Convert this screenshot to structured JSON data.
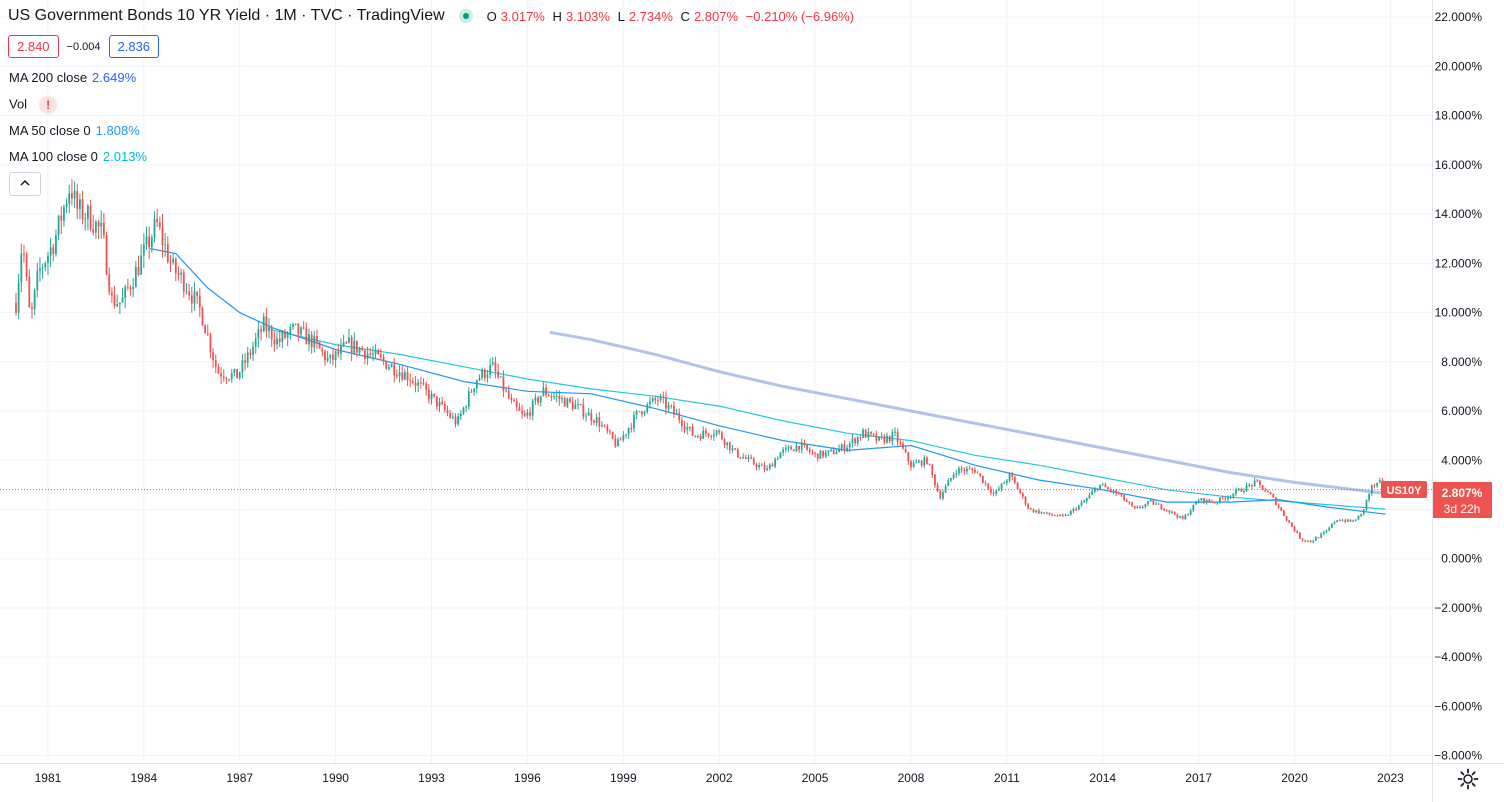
{
  "header": {
    "title": "US Government Bonds 10 YR Yield · 1M · TVC · TradingView",
    "ohlc": {
      "open_label": "O",
      "open": "3.017%",
      "high_label": "H",
      "high": "3.103%",
      "low_label": "L",
      "low": "2.734%",
      "close_label": "C",
      "close": "2.807%",
      "change": "−0.210% (−6.96%)"
    },
    "sell_price": "2.840",
    "spread": "−0.004",
    "buy_price": "2.836"
  },
  "indicators": [
    {
      "label": "MA 200 close",
      "value": "2.649%",
      "color": "#2962ff"
    },
    {
      "label": "Vol",
      "warning": "!"
    },
    {
      "label": "MA 50 close 0",
      "value": "1.808%",
      "color": "#2196f3"
    },
    {
      "label": "MA 100 close 0",
      "value": "2.013%",
      "color": "#00bcd4"
    }
  ],
  "symbol_tag": "US10Y",
  "last_price_tag": {
    "price": "2.807%",
    "countdown": "3d 22h"
  },
  "colors": {
    "up": "#26a69a",
    "down": "#ef5350",
    "ma50": "#2196f3",
    "ma100": "#26c6da",
    "ma200": "#a5b8e6",
    "price_tag": "#ef5350",
    "grid": "#f0f3fa"
  },
  "icons": {
    "collapse": "chevron-up-icon",
    "settings": "gear-icon",
    "status": "market-status-dot-icon"
  },
  "chart_data": {
    "type": "candlestick",
    "symbol": "US10Y",
    "interval": "1M",
    "ylim": [
      -8.3,
      22.7
    ],
    "xlim": [
      1979.5,
      2024.3
    ],
    "y_ticks": [
      "22.000%",
      "20.000%",
      "18.000%",
      "16.000%",
      "14.000%",
      "12.000%",
      "10.000%",
      "8.000%",
      "6.000%",
      "4.000%",
      "2.000%",
      "0.000%",
      "−2.000%",
      "−4.000%",
      "−6.000%",
      "−8.000%"
    ],
    "x_ticks": [
      "1981",
      "1984",
      "1987",
      "1990",
      "1993",
      "1996",
      "1999",
      "2002",
      "2005",
      "2008",
      "2011",
      "2014",
      "2017",
      "2020",
      "2023"
    ],
    "last_close": 2.807,
    "price_path": [
      [
        1980.0,
        10.4
      ],
      [
        1980.2,
        13.0
      ],
      [
        1980.45,
        9.6
      ],
      [
        1980.7,
        11.6
      ],
      [
        1981.2,
        12.9
      ],
      [
        1981.7,
        15.2
      ],
      [
        1981.9,
        14.2
      ],
      [
        1982.3,
        13.9
      ],
      [
        1982.7,
        13.2
      ],
      [
        1983.0,
        10.5
      ],
      [
        1983.3,
        10.4
      ],
      [
        1983.8,
        11.8
      ],
      [
        1984.4,
        13.6
      ],
      [
        1984.9,
        11.8
      ],
      [
        1985.3,
        11.2
      ],
      [
        1985.8,
        10.0
      ],
      [
        1986.3,
        7.6
      ],
      [
        1986.9,
        7.4
      ],
      [
        1987.3,
        8.3
      ],
      [
        1987.75,
        9.5
      ],
      [
        1988.2,
        8.8
      ],
      [
        1988.7,
        9.3
      ],
      [
        1989.3,
        8.8
      ],
      [
        1989.8,
        8.0
      ],
      [
        1990.4,
        8.7
      ],
      [
        1990.8,
        8.5
      ],
      [
        1991.5,
        8.0
      ],
      [
        1992.3,
        7.4
      ],
      [
        1992.8,
        6.8
      ],
      [
        1993.5,
        5.9
      ],
      [
        1993.8,
        5.5
      ],
      [
        1994.4,
        7.3
      ],
      [
        1994.9,
        7.8
      ],
      [
        1995.5,
        6.3
      ],
      [
        1995.9,
        5.7
      ],
      [
        1996.5,
        6.8
      ],
      [
        1997.0,
        6.5
      ],
      [
        1997.5,
        6.2
      ],
      [
        1998.2,
        5.6
      ],
      [
        1998.8,
        4.6
      ],
      [
        1999.5,
        6.0
      ],
      [
        2000.1,
        6.5
      ],
      [
        2000.7,
        5.8
      ],
      [
        2001.2,
        5.0
      ],
      [
        2001.9,
        5.2
      ],
      [
        2002.5,
        4.3
      ],
      [
        2002.9,
        4.0
      ],
      [
        2003.5,
        3.6
      ],
      [
        2003.9,
        4.3
      ],
      [
        2004.5,
        4.6
      ],
      [
        2005.0,
        4.2
      ],
      [
        2005.5,
        4.3
      ],
      [
        2006.0,
        4.6
      ],
      [
        2006.5,
        5.1
      ],
      [
        2007.0,
        4.8
      ],
      [
        2007.5,
        5.0
      ],
      [
        2008.0,
        3.8
      ],
      [
        2008.5,
        4.0
      ],
      [
        2008.9,
        2.5
      ],
      [
        2009.4,
        3.6
      ],
      [
        2010.0,
        3.6
      ],
      [
        2010.6,
        2.6
      ],
      [
        2011.1,
        3.4
      ],
      [
        2011.7,
        2.0
      ],
      [
        2012.3,
        1.8
      ],
      [
        2012.8,
        1.7
      ],
      [
        2013.4,
        2.3
      ],
      [
        2013.9,
        3.0
      ],
      [
        2014.5,
        2.6
      ],
      [
        2015.0,
        2.0
      ],
      [
        2015.5,
        2.3
      ],
      [
        2016.0,
        2.0
      ],
      [
        2016.5,
        1.6
      ],
      [
        2017.0,
        2.4
      ],
      [
        2017.5,
        2.3
      ],
      [
        2018.0,
        2.6
      ],
      [
        2018.8,
        3.1
      ],
      [
        2019.3,
        2.5
      ],
      [
        2019.7,
        1.7
      ],
      [
        2020.2,
        0.8
      ],
      [
        2020.5,
        0.7
      ],
      [
        2021.0,
        1.1
      ],
      [
        2021.3,
        1.6
      ],
      [
        2021.8,
        1.5
      ],
      [
        2022.1,
        1.8
      ],
      [
        2022.4,
        2.9
      ],
      [
        2022.7,
        3.1
      ],
      [
        2022.85,
        2.8
      ]
    ],
    "ma_series": [
      {
        "name": "MA 50 close 0",
        "key": "ma50",
        "points": [
          [
            1984.2,
            12.6
          ],
          [
            1985.0,
            12.4
          ],
          [
            1986.0,
            11.0
          ],
          [
            1987.0,
            10.0
          ],
          [
            1988.0,
            9.4
          ],
          [
            1990.0,
            8.5
          ],
          [
            1992.0,
            7.9
          ],
          [
            1994.0,
            7.2
          ],
          [
            1996.0,
            6.8
          ],
          [
            1998.0,
            6.7
          ],
          [
            2000.0,
            6.1
          ],
          [
            2002.0,
            5.4
          ],
          [
            2004.0,
            4.8
          ],
          [
            2006.0,
            4.4
          ],
          [
            2008.0,
            4.6
          ],
          [
            2010.0,
            3.8
          ],
          [
            2012.0,
            3.2
          ],
          [
            2014.0,
            2.8
          ],
          [
            2016.0,
            2.3
          ],
          [
            2018.0,
            2.3
          ],
          [
            2019.5,
            2.4
          ],
          [
            2021.0,
            2.1
          ],
          [
            2022.85,
            1.81
          ]
        ]
      },
      {
        "name": "MA 100 close 0",
        "key": "ma100",
        "points": [
          [
            1988.0,
            9.3
          ],
          [
            1990.0,
            8.7
          ],
          [
            1992.0,
            8.3
          ],
          [
            1994.0,
            7.8
          ],
          [
            1996.0,
            7.3
          ],
          [
            1998.0,
            6.9
          ],
          [
            2000.0,
            6.6
          ],
          [
            2002.0,
            6.2
          ],
          [
            2004.0,
            5.6
          ],
          [
            2006.0,
            5.1
          ],
          [
            2008.0,
            4.8
          ],
          [
            2010.0,
            4.2
          ],
          [
            2012.0,
            3.8
          ],
          [
            2014.0,
            3.3
          ],
          [
            2016.0,
            2.8
          ],
          [
            2018.0,
            2.5
          ],
          [
            2020.0,
            2.3
          ],
          [
            2022.85,
            2.01
          ]
        ]
      },
      {
        "name": "MA 200 close",
        "key": "ma200",
        "points": [
          [
            1996.7,
            9.2
          ],
          [
            1998.0,
            8.9
          ],
          [
            2000.0,
            8.3
          ],
          [
            2002.0,
            7.6
          ],
          [
            2004.0,
            7.0
          ],
          [
            2006.0,
            6.5
          ],
          [
            2008.0,
            6.0
          ],
          [
            2010.0,
            5.5
          ],
          [
            2012.0,
            5.0
          ],
          [
            2014.0,
            4.5
          ],
          [
            2016.0,
            4.0
          ],
          [
            2018.0,
            3.5
          ],
          [
            2020.0,
            3.1
          ],
          [
            2022.85,
            2.65
          ]
        ]
      }
    ]
  }
}
